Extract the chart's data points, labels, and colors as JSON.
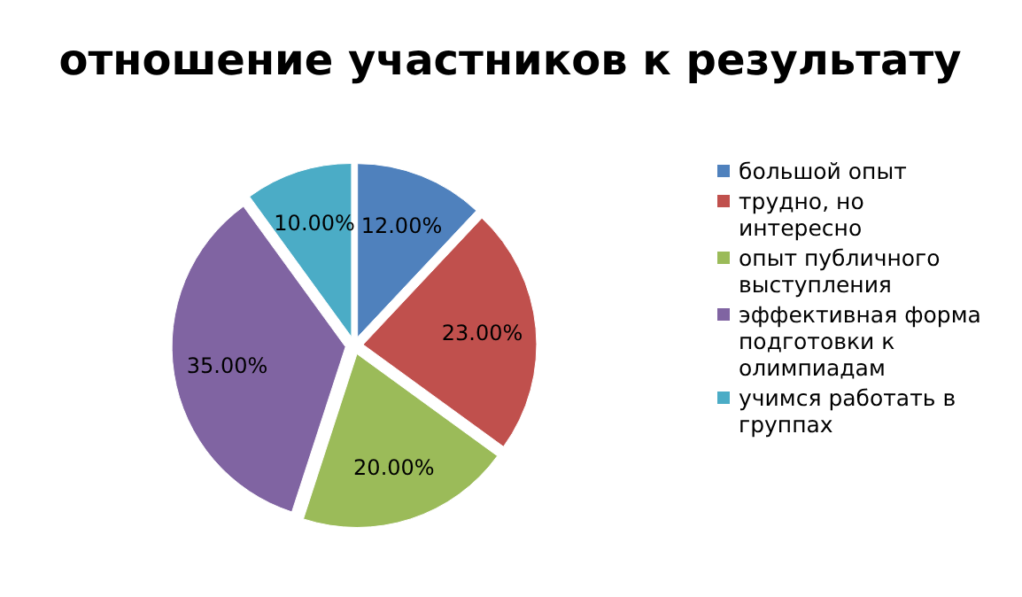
{
  "chart_data": {
    "type": "pie",
    "title": "отношение участников к результату",
    "categories": [
      "большой опыт",
      "трудно, но интересно",
      "опыт публичного выступления",
      "эффективная форма подготовки к олимпиадам",
      "учимся работать в группах"
    ],
    "values": [
      12,
      23,
      20,
      35,
      10
    ],
    "value_labels": [
      "12.00%",
      "23.00%",
      "20.00%",
      "35.00%",
      "10.00%"
    ],
    "colors": [
      "#4f81bd",
      "#c0504d",
      "#9bbb59",
      "#8064a2",
      "#4bacc6"
    ],
    "legend": "right"
  }
}
